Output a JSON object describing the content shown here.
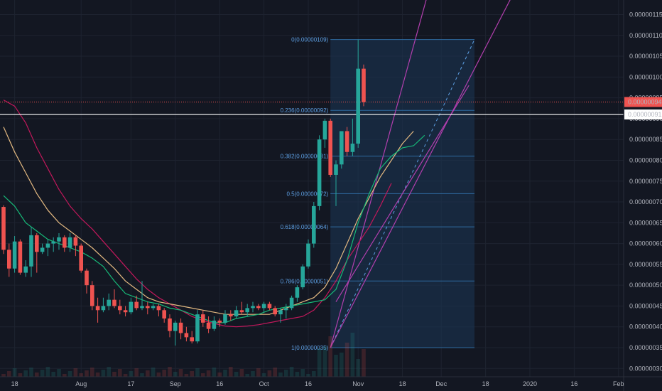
{
  "chart_data": {
    "type": "candlestick",
    "ylim": [
      2.8e-07,
      1.185e-06
    ],
    "y_ticks": [
      "0.00000030",
      "0.00000035",
      "0.00000040",
      "0.00000045",
      "0.00000050",
      "0.00000055",
      "0.00000060",
      "0.00000065",
      "0.00000070",
      "0.00000075",
      "0.00000080",
      "0.00000085",
      "0.00000090",
      "0.00000095",
      "0.00000100",
      "0.00000105",
      "0.00000110",
      "0.00000115"
    ],
    "x_ticks": [
      "18",
      "Aug",
      "17",
      "Sep",
      "16",
      "Oct",
      "16",
      "Nov",
      "18",
      "Dec",
      "18",
      "2020",
      "16",
      "Feb"
    ],
    "x_tick_index": [
      2,
      14,
      23,
      31,
      39,
      47,
      55,
      64,
      72,
      79,
      87,
      95,
      103,
      111
    ],
    "price_labels": {
      "current": {
        "text": "0.00000094",
        "value": 9.4e-07,
        "color": "#f05350"
      },
      "line": {
        "text": "0.00000091",
        "value": 9.1e-07,
        "color": "#ffffff"
      }
    },
    "fib_levels": [
      {
        "label": "0(0.00000109)",
        "value": 1.09e-06
      },
      {
        "label": "0.236(0.00000092)",
        "value": 9.2e-07
      },
      {
        "label": "0.382(0.00000081)",
        "value": 8.1e-07
      },
      {
        "label": "0.5(0.00000072)",
        "value": 7.2e-07
      },
      {
        "label": "0.618(0.00000064)",
        "value": 6.4e-07
      },
      {
        "label": "0.786(0.00000051)",
        "value": 5.1e-07
      },
      {
        "label": "1(0.00000035)",
        "value": 3.5e-07
      }
    ],
    "fib_range": {
      "start_index": 59,
      "end_index": 85
    },
    "candles": [
      [
        6.88e-07,
        6.92e-07,
        5.75e-07,
        5.85e-07
      ],
      [
        5.85e-07,
        6e-07,
        5.2e-07,
        5.4e-07
      ],
      [
        5.4e-07,
        6.18e-07,
        5.3e-07,
        6.05e-07
      ],
      [
        6.05e-07,
        6.1e-07,
        5.25e-07,
        5.3e-07
      ],
      [
        5.3e-07,
        5.6e-07,
        5.2e-07,
        5.45e-07
      ],
      [
        5.45e-07,
        6.4e-07,
        5.2e-07,
        6.2e-07
      ],
      [
        6.2e-07,
        6.25e-07,
        5.3e-07,
        5.8e-07
      ],
      [
        5.8e-07,
        6e-07,
        5.75e-07,
        5.9e-07
      ],
      [
        5.9e-07,
        6.1e-07,
        5.7e-07,
        6e-07
      ],
      [
        6e-07,
        6.15e-07,
        5.8e-07,
        6.05e-07
      ],
      [
        6.05e-07,
        6.25e-07,
        5.85e-07,
        6.15e-07
      ],
      [
        6.15e-07,
        6.2e-07,
        5.8e-07,
        5.9e-07
      ],
      [
        5.9e-07,
        6.25e-07,
        5.8e-07,
        6.15e-07
      ],
      [
        6.15e-07,
        6.2e-07,
        5.7e-07,
        5.95e-07
      ],
      [
        5.95e-07,
        6e-07,
        5.3e-07,
        5.35e-07
      ],
      [
        5.35e-07,
        5.4e-07,
        4.8e-07,
        5e-07
      ],
      [
        5e-07,
        5.1e-07,
        4.4e-07,
        4.5e-07
      ],
      [
        4.5e-07,
        4.7e-07,
        4.1e-07,
        4.4e-07
      ],
      [
        4.4e-07,
        4.7e-07,
        4.35e-07,
        4.5e-07
      ],
      [
        4.5e-07,
        4.8e-07,
        4.4e-07,
        4.65e-07
      ],
      [
        4.65e-07,
        4.9e-07,
        4.45e-07,
        4.5e-07
      ],
      [
        4.5e-07,
        4.65e-07,
        4.3e-07,
        4.4e-07
      ],
      [
        4.4e-07,
        4.5e-07,
        4.25e-07,
        4.35e-07
      ],
      [
        4.35e-07,
        4.7e-07,
        4.3e-07,
        4.6e-07
      ],
      [
        4.6e-07,
        4.75e-07,
        4.4e-07,
        4.45e-07
      ],
      [
        4.45e-07,
        5.1e-07,
        4.4e-07,
        4.5e-07
      ],
      [
        4.5e-07,
        4.6e-07,
        4.3e-07,
        4.45e-07
      ],
      [
        4.45e-07,
        4.55e-07,
        4.4e-07,
        4.5e-07
      ],
      [
        4.5e-07,
        4.55e-07,
        4.25e-07,
        4.4e-07
      ],
      [
        4.4e-07,
        4.45e-07,
        4.1e-07,
        4.2e-07
      ],
      [
        4.2e-07,
        4.3e-07,
        3.75e-07,
        3.9e-07
      ],
      [
        3.9e-07,
        4.15e-07,
        3.55e-07,
        4.1e-07
      ],
      [
        4.1e-07,
        4.2e-07,
        3.7e-07,
        3.85e-07
      ],
      [
        3.85e-07,
        4e-07,
        3.65e-07,
        3.75e-07
      ],
      [
        3.75e-07,
        3.9e-07,
        3.6e-07,
        3.65e-07
      ],
      [
        3.65e-07,
        4.4e-07,
        3.6e-07,
        4.3e-07
      ],
      [
        4.3e-07,
        4.4e-07,
        4e-07,
        4.1e-07
      ],
      [
        4.1e-07,
        4.25e-07,
        3.85e-07,
        3.95e-07
      ],
      [
        3.95e-07,
        4.25e-07,
        3.9e-07,
        4.15e-07
      ],
      [
        4.15e-07,
        4.2e-07,
        4e-07,
        4.1e-07
      ],
      [
        4.1e-07,
        4.4e-07,
        4.05e-07,
        4.3e-07
      ],
      [
        4.3e-07,
        4.4e-07,
        4.15e-07,
        4.25e-07
      ],
      [
        4.25e-07,
        4.5e-07,
        4.2e-07,
        4.4e-07
      ],
      [
        4.4e-07,
        4.6e-07,
        4.3e-07,
        4.35e-07
      ],
      [
        4.35e-07,
        4.55e-07,
        4.25e-07,
        4.45e-07
      ],
      [
        4.45e-07,
        4.6e-07,
        4.35e-07,
        4.5e-07
      ],
      [
        4.5e-07,
        4.55e-07,
        4.4e-07,
        4.45e-07
      ],
      [
        4.45e-07,
        4.6e-07,
        4.35e-07,
        4.55e-07
      ],
      [
        4.55e-07,
        4.6e-07,
        4.4e-07,
        4.45e-07
      ],
      [
        4.45e-07,
        4.5e-07,
        4.25e-07,
        4.3e-07
      ],
      [
        4.3e-07,
        4.45e-07,
        4.1e-07,
        4.4e-07
      ],
      [
        4.4e-07,
        4.55e-07,
        4.2e-07,
        4.45e-07
      ],
      [
        4.45e-07,
        4.75e-07,
        4.4e-07,
        4.7e-07
      ],
      [
        4.7e-07,
        5e-07,
        4.6e-07,
        4.95e-07
      ],
      [
        4.95e-07,
        5.5e-07,
        4.9e-07,
        5.45e-07
      ],
      [
        5.45e-07,
        6.1e-07,
        5.4e-07,
        6e-07
      ],
      [
        6e-07,
        7e-07,
        5.9e-07,
        6.9e-07
      ],
      [
        6.9e-07,
        8.6e-07,
        6.8e-07,
        8.5e-07
      ],
      [
        8.5e-07,
        9e-07,
        8.3e-07,
        8.95e-07
      ],
      [
        8.95e-07,
        9e-07,
        7.6e-07,
        7.65e-07
      ],
      [
        7.65e-07,
        8e-07,
        6.9e-07,
        7.9e-07
      ],
      [
        7.9e-07,
        8.7e-07,
        7.8e-07,
        8.7e-07
      ],
      [
        8.7e-07,
        8.8e-07,
        8.1e-07,
        8.2e-07
      ],
      [
        8.2e-07,
        9e-07,
        8.1e-07,
        8.4e-07
      ],
      [
        8.4e-07,
        1.09e-06,
        8.3e-07,
        1.02e-06
      ],
      [
        1.02e-06,
        1.03e-06,
        9.3e-07,
        9.4e-07
      ]
    ],
    "sma_fast": [
      [
        0,
        7.15e-07
      ],
      [
        2,
        6.9e-07
      ],
      [
        4,
        6.5e-07
      ],
      [
        6,
        6.3e-07
      ],
      [
        8,
        6.1e-07
      ],
      [
        10,
        6e-07
      ],
      [
        12,
        5.9e-07
      ],
      [
        14,
        5.8e-07
      ],
      [
        16,
        5.65e-07
      ],
      [
        18,
        5.45e-07
      ],
      [
        20,
        5.1e-07
      ],
      [
        22,
        4.8e-07
      ],
      [
        24,
        4.7e-07
      ],
      [
        26,
        4.6e-07
      ],
      [
        28,
        4.55e-07
      ],
      [
        30,
        4.45e-07
      ],
      [
        32,
        4.4e-07
      ],
      [
        34,
        4.3e-07
      ],
      [
        36,
        4.2e-07
      ],
      [
        38,
        4.1e-07
      ],
      [
        40,
        4.1e-07
      ],
      [
        42,
        4.2e-07
      ],
      [
        44,
        4.25e-07
      ],
      [
        46,
        4.3e-07
      ],
      [
        48,
        4.4e-07
      ],
      [
        50,
        4.45e-07
      ],
      [
        52,
        4.5e-07
      ],
      [
        54,
        4.55e-07
      ],
      [
        56,
        4.6e-07
      ],
      [
        58,
        4.65e-07
      ],
      [
        60,
        4.9e-07
      ],
      [
        62,
        5.6e-07
      ],
      [
        64,
        6.5e-07
      ],
      [
        66,
        7.2e-07
      ],
      [
        68,
        7.8e-07
      ],
      [
        70,
        8.1e-07
      ],
      [
        72,
        8.3e-07
      ],
      [
        74,
        8.35e-07
      ],
      [
        76,
        8.6e-07
      ]
    ],
    "sma_mid": [
      [
        0,
        8.8e-07
      ],
      [
        2,
        8.2e-07
      ],
      [
        4,
        7.7e-07
      ],
      [
        6,
        7.2e-07
      ],
      [
        8,
        6.8e-07
      ],
      [
        10,
        6.5e-07
      ],
      [
        12,
        6.3e-07
      ],
      [
        14,
        6.1e-07
      ],
      [
        16,
        5.9e-07
      ],
      [
        18,
        5.65e-07
      ],
      [
        20,
        5.4e-07
      ],
      [
        22,
        5.1e-07
      ],
      [
        24,
        4.9e-07
      ],
      [
        26,
        4.7e-07
      ],
      [
        28,
        4.6e-07
      ],
      [
        30,
        4.55e-07
      ],
      [
        32,
        4.5e-07
      ],
      [
        34,
        4.45e-07
      ],
      [
        36,
        4.4e-07
      ],
      [
        38,
        4.35e-07
      ],
      [
        40,
        4.3e-07
      ],
      [
        42,
        4.3e-07
      ],
      [
        44,
        4.3e-07
      ],
      [
        46,
        4.3e-07
      ],
      [
        48,
        4.3e-07
      ],
      [
        50,
        4.4e-07
      ],
      [
        52,
        4.5e-07
      ],
      [
        54,
        4.6e-07
      ],
      [
        56,
        4.7e-07
      ],
      [
        58,
        4.95e-07
      ],
      [
        60,
        5.4e-07
      ],
      [
        62,
        6e-07
      ],
      [
        64,
        6.6e-07
      ],
      [
        66,
        7.1e-07
      ],
      [
        68,
        7.6e-07
      ],
      [
        70,
        8e-07
      ],
      [
        72,
        8.4e-07
      ],
      [
        74,
        8.7e-07
      ]
    ],
    "sma_slow": [
      [
        0,
        9.45e-07
      ],
      [
        2,
        9.3e-07
      ],
      [
        4,
        8.9e-07
      ],
      [
        6,
        8.3e-07
      ],
      [
        8,
        7.8e-07
      ],
      [
        10,
        7.3e-07
      ],
      [
        12,
        6.9e-07
      ],
      [
        14,
        6.6e-07
      ],
      [
        16,
        6.35e-07
      ],
      [
        18,
        6.05e-07
      ],
      [
        20,
        5.75e-07
      ],
      [
        22,
        5.45e-07
      ],
      [
        24,
        5.15e-07
      ],
      [
        26,
        4.9e-07
      ],
      [
        28,
        4.7e-07
      ],
      [
        30,
        4.55e-07
      ],
      [
        32,
        4.4e-07
      ],
      [
        34,
        4.25e-07
      ],
      [
        36,
        4.15e-07
      ],
      [
        38,
        4.08e-07
      ],
      [
        40,
        4.02e-07
      ],
      [
        42,
        4e-07
      ],
      [
        44,
        4.02e-07
      ],
      [
        46,
        4.05e-07
      ],
      [
        48,
        4.1e-07
      ],
      [
        50,
        4.15e-07
      ],
      [
        52,
        4.2e-07
      ],
      [
        54,
        4.25e-07
      ],
      [
        56,
        4.4e-07
      ],
      [
        58,
        4.7e-07
      ],
      [
        60,
        5.1e-07
      ],
      [
        62,
        5.6e-07
      ],
      [
        64,
        6e-07
      ],
      [
        66,
        6.4e-07
      ],
      [
        68,
        6.9e-07
      ],
      [
        70,
        7.45e-07
      ]
    ],
    "grid": true
  },
  "colors": {
    "background": "#131722",
    "grid": "#1e2330",
    "up": "#26a69a",
    "down": "#ef5350",
    "sma_fast": "#17b978",
    "sma_mid": "#e3b981",
    "sma_slow": "#c2185b",
    "fib": "#2f6ba0",
    "fib_fill": "#1b3656",
    "channel": "#b23fae",
    "dashed": "#5d9fe3"
  }
}
